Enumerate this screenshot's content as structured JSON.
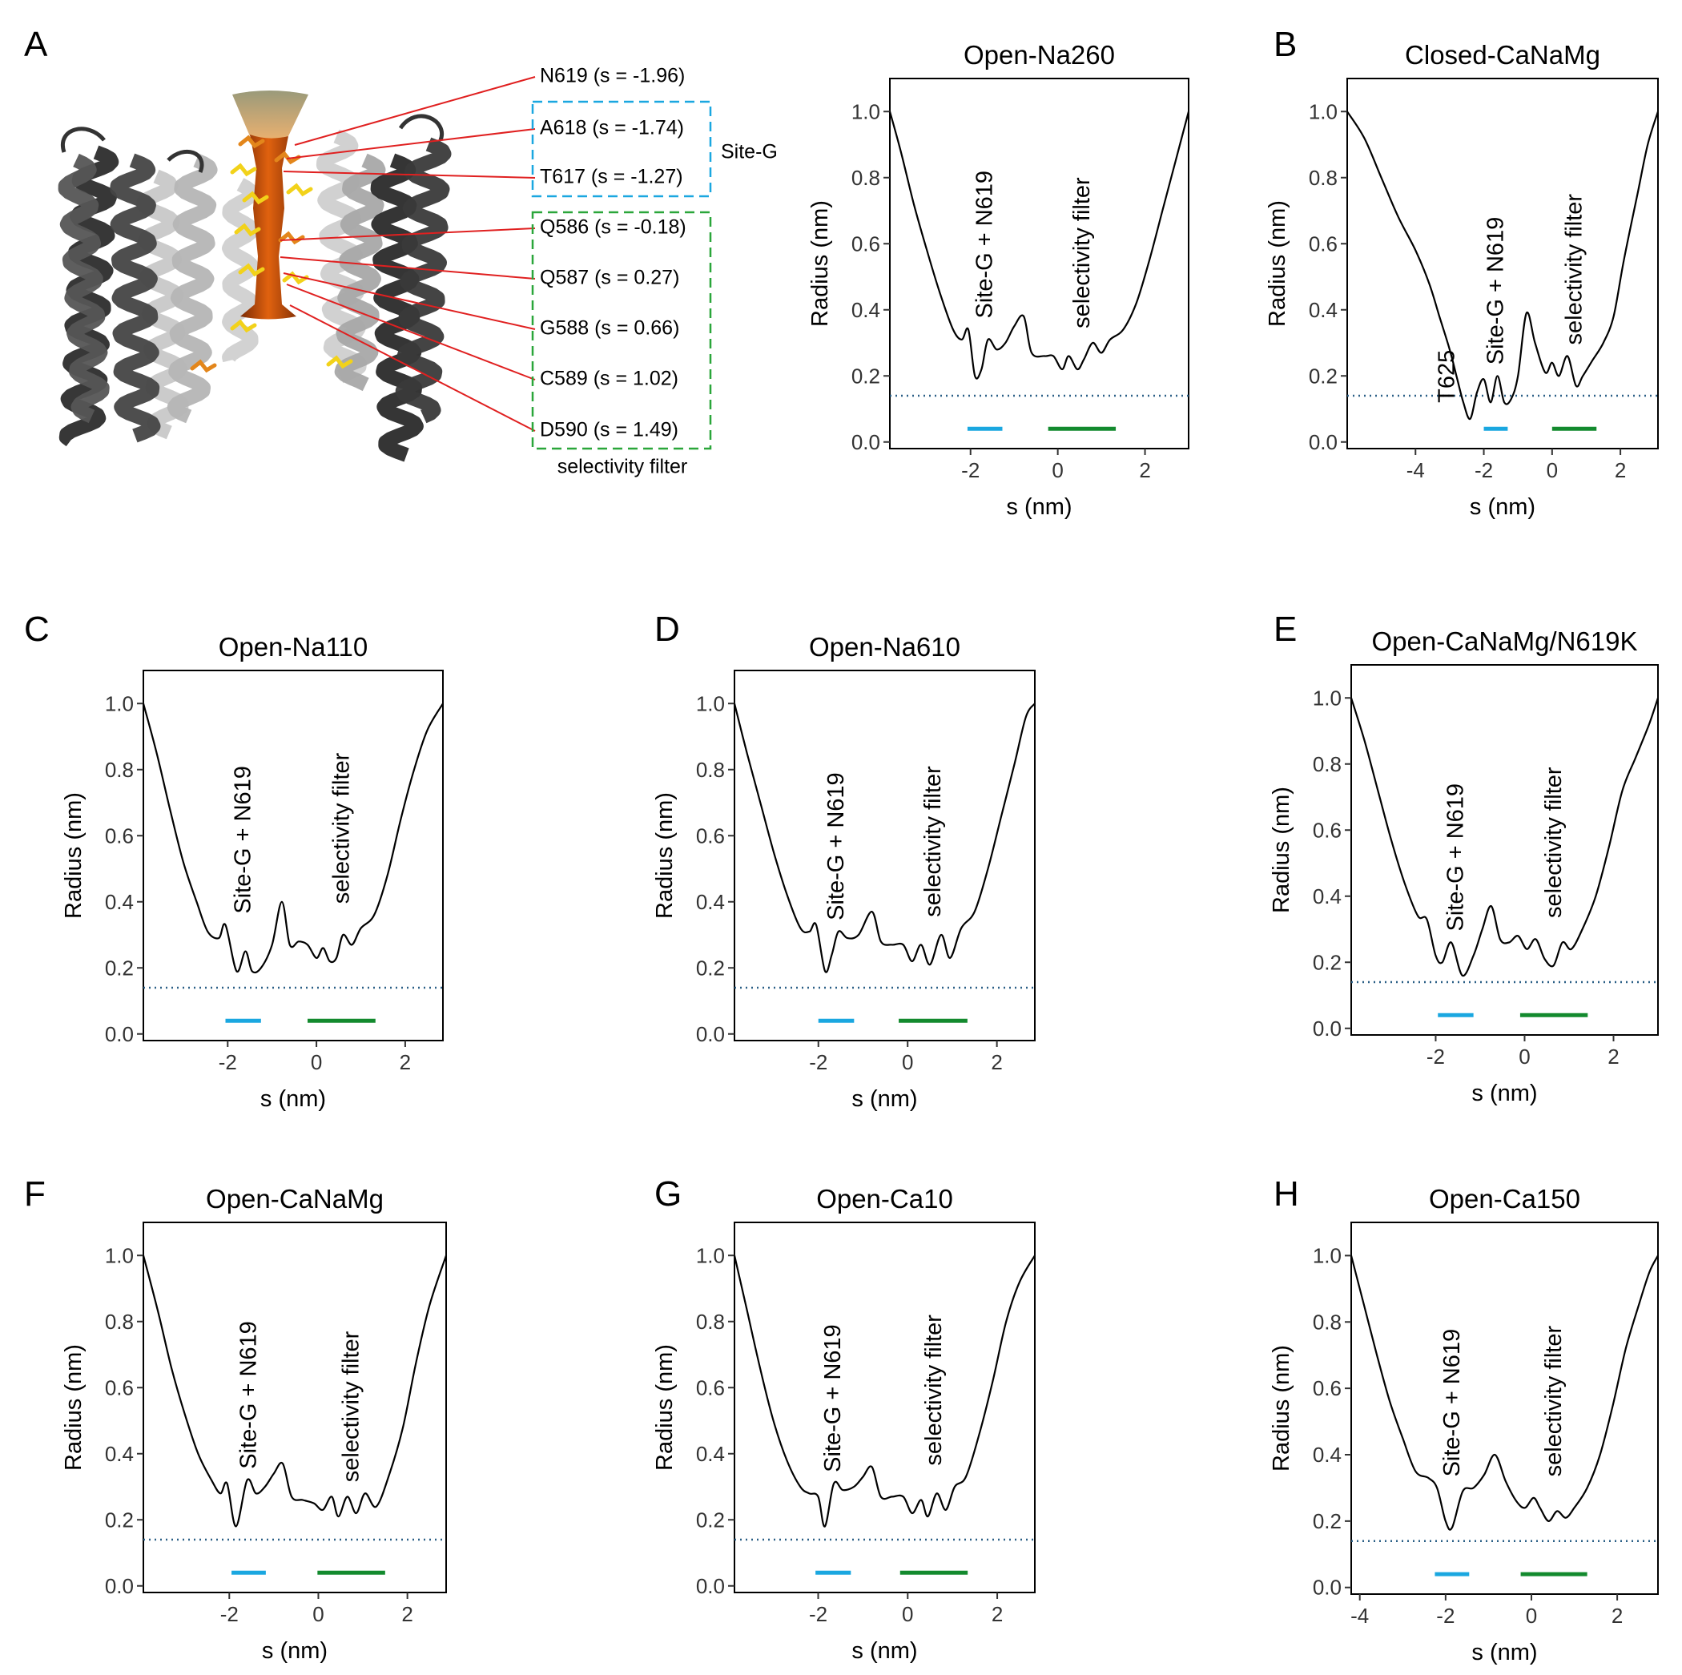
{
  "panels": [
    "A",
    "B",
    "C",
    "D",
    "E",
    "F",
    "G",
    "H"
  ],
  "structure": {
    "residues": [
      "N619 (s = -1.96)",
      "A618 (s = -1.74)",
      "T617 (s = -1.27)",
      "Q586 (s = -0.18)",
      "Q587 (s = 0.27)",
      "G588 (s = 0.66)",
      "C589 (s = 1.02)",
      "D590 (s = 1.49)"
    ],
    "site_g": "Site-G",
    "selectivity_filter": "selectivity filter"
  },
  "chart_data": [
    {
      "type": "line",
      "title": "Open-Na260",
      "x_label": "s (nm)",
      "y_label": "Radius (nm)",
      "color": "#000000",
      "xlim": [
        -3.85,
        3.0
      ],
      "xticks": [
        -2,
        0,
        2
      ],
      "ylim": [
        -0.02,
        1.1
      ],
      "yticks": [
        {
          "value": 0,
          "label": "0.0"
        },
        0.2,
        0.4,
        0.6,
        0.8,
        {
          "value": 1,
          "label": "1.0"
        }
      ],
      "x": [
        -3.85,
        -3.6,
        -3.3,
        -3.0,
        -2.7,
        -2.4,
        -2.2,
        -2.05,
        -1.9,
        -1.75,
        -1.6,
        -1.4,
        -1.2,
        -1.0,
        -0.78,
        -0.6,
        -0.3,
        -0.1,
        0.1,
        0.25,
        0.45,
        0.6,
        0.8,
        1.0,
        1.2,
        1.5,
        1.8,
        2.1,
        2.4,
        2.7,
        3.0
      ],
      "values": [
        1.0,
        0.88,
        0.72,
        0.58,
        0.45,
        0.34,
        0.31,
        0.34,
        0.2,
        0.22,
        0.31,
        0.28,
        0.3,
        0.35,
        0.38,
        0.27,
        0.26,
        0.26,
        0.22,
        0.26,
        0.22,
        0.25,
        0.3,
        0.27,
        0.31,
        0.34,
        0.42,
        0.55,
        0.7,
        0.85,
        1.0
      ],
      "reference_y": 0.14,
      "reference_color": "#2a5f86",
      "ranges": [
        {
          "name": "Site-G + N619",
          "color": "#1aa7e0",
          "x": [
            -2.07,
            -1.27
          ],
          "y": 0.04
        },
        {
          "name": "selectivity filter",
          "color": "#138a2e",
          "x": [
            -0.22,
            1.33
          ],
          "y": 0.04
        }
      ]
    },
    {
      "type": "line",
      "title": "Closed-CaNaMg",
      "x_label": "s (nm)",
      "y_label": "Radius (nm)",
      "color": "#000000",
      "xlim": [
        -6.0,
        3.1
      ],
      "xticks": [
        -4,
        -2,
        0,
        2
      ],
      "ylim": [
        -0.02,
        1.1
      ],
      "yticks": [
        {
          "value": 0,
          "label": "0.0"
        },
        0.2,
        0.4,
        0.6,
        0.8,
        {
          "value": 1,
          "label": "1.0"
        }
      ],
      "x": [
        -6.0,
        -5.5,
        -5.0,
        -4.5,
        -4.0,
        -3.6,
        -3.3,
        -3.0,
        -2.8,
        -2.6,
        -2.4,
        -2.2,
        -2.0,
        -1.8,
        -1.6,
        -1.4,
        -1.2,
        -1.0,
        -0.75,
        -0.5,
        -0.2,
        0,
        0.2,
        0.45,
        0.7,
        0.9,
        1.2,
        1.5,
        1.8,
        2.1,
        2.5,
        2.8,
        3.1
      ],
      "values": [
        1.0,
        0.92,
        0.8,
        0.68,
        0.58,
        0.48,
        0.38,
        0.28,
        0.2,
        0.12,
        0.07,
        0.15,
        0.19,
        0.12,
        0.2,
        0.12,
        0.13,
        0.2,
        0.39,
        0.3,
        0.21,
        0.24,
        0.2,
        0.26,
        0.17,
        0.2,
        0.25,
        0.3,
        0.38,
        0.55,
        0.75,
        0.9,
        1.0
      ],
      "reference_y": 0.14,
      "reference_color": "#2a5f86",
      "ranges": [
        {
          "name": "Site-G + N619",
          "color": "#1aa7e0",
          "x": [
            -2.0,
            -1.3
          ],
          "y": 0.04
        },
        {
          "name": "selectivity filter",
          "color": "#138a2e",
          "x": [
            0.0,
            1.3
          ],
          "y": 0.04
        }
      ],
      "annotations": [
        "T625"
      ]
    },
    {
      "type": "line",
      "title": "Open-Na110",
      "x_label": "s (nm)",
      "y_label": "Radius (nm)",
      "color": "#000000",
      "xlim": [
        -3.9,
        2.85
      ],
      "xticks": [
        -2,
        0,
        2
      ],
      "ylim": [
        -0.02,
        1.1
      ],
      "yticks": [
        {
          "value": 0,
          "label": "0.0"
        },
        0.2,
        0.4,
        0.6,
        0.8,
        {
          "value": 1,
          "label": "1.0"
        }
      ],
      "x": [
        -3.9,
        -3.6,
        -3.3,
        -3.0,
        -2.7,
        -2.45,
        -2.2,
        -2.05,
        -1.8,
        -1.6,
        -1.45,
        -1.25,
        -1.0,
        -0.78,
        -0.6,
        -0.4,
        -0.2,
        0,
        0.15,
        0.3,
        0.45,
        0.6,
        0.8,
        1.0,
        1.3,
        1.6,
        1.9,
        2.2,
        2.5,
        2.85
      ],
      "values": [
        1.0,
        0.85,
        0.68,
        0.52,
        0.4,
        0.31,
        0.29,
        0.33,
        0.19,
        0.25,
        0.19,
        0.2,
        0.27,
        0.4,
        0.27,
        0.28,
        0.27,
        0.23,
        0.26,
        0.22,
        0.23,
        0.3,
        0.27,
        0.32,
        0.36,
        0.48,
        0.65,
        0.8,
        0.92,
        1.0
      ],
      "reference_y": 0.14,
      "reference_color": "#2a5f86",
      "ranges": [
        {
          "name": "Site-G + N619",
          "color": "#1aa7e0",
          "x": [
            -2.05,
            -1.25
          ],
          "y": 0.04
        },
        {
          "name": "selectivity filter",
          "color": "#138a2e",
          "x": [
            -0.2,
            1.33
          ],
          "y": 0.04
        }
      ]
    },
    {
      "type": "line",
      "title": "Open-Na610",
      "x_label": "s (nm)",
      "y_label": "Radius (nm)",
      "color": "#000000",
      "xlim": [
        -3.88,
        2.85
      ],
      "xticks": [
        -2,
        0,
        2
      ],
      "ylim": [
        -0.02,
        1.1
      ],
      "yticks": [
        {
          "value": 0,
          "label": "0.0"
        },
        0.2,
        0.4,
        0.6,
        0.8,
        {
          "value": 1,
          "label": "1.0"
        }
      ],
      "x": [
        -3.88,
        -3.6,
        -3.3,
        -3.0,
        -2.7,
        -2.4,
        -2.2,
        -2.05,
        -1.85,
        -1.7,
        -1.55,
        -1.35,
        -1.1,
        -0.8,
        -0.6,
        -0.35,
        -0.1,
        0.1,
        0.3,
        0.5,
        0.75,
        0.95,
        1.2,
        1.5,
        1.8,
        2.1,
        2.4,
        2.65,
        2.85
      ],
      "values": [
        1.0,
        0.85,
        0.7,
        0.55,
        0.42,
        0.32,
        0.31,
        0.33,
        0.19,
        0.24,
        0.31,
        0.29,
        0.3,
        0.37,
        0.28,
        0.27,
        0.27,
        0.22,
        0.27,
        0.21,
        0.3,
        0.23,
        0.32,
        0.37,
        0.5,
        0.66,
        0.82,
        0.96,
        1.0
      ],
      "reference_y": 0.14,
      "reference_color": "#2a5f86",
      "ranges": [
        {
          "name": "Site-G + N619",
          "color": "#1aa7e0",
          "x": [
            -2.0,
            -1.2
          ],
          "y": 0.04
        },
        {
          "name": "selectivity filter",
          "color": "#138a2e",
          "x": [
            -0.2,
            1.34
          ],
          "y": 0.04
        }
      ]
    },
    {
      "type": "line",
      "title": "Open-CaNaMg/N619K",
      "x_label": "s (nm)",
      "y_label": "Radius (nm)",
      "color": "#000000",
      "xlim": [
        -3.9,
        3.0
      ],
      "xticks": [
        -2,
        0,
        2
      ],
      "ylim": [
        -0.02,
        1.1
      ],
      "yticks": [
        {
          "value": 0,
          "label": "0.0"
        },
        0.2,
        0.4,
        0.6,
        0.8,
        {
          "value": 1,
          "label": "1.0"
        }
      ],
      "x": [
        -3.9,
        -3.6,
        -3.3,
        -3.0,
        -2.7,
        -2.4,
        -2.2,
        -2.0,
        -1.85,
        -1.65,
        -1.4,
        -1.15,
        -0.95,
        -0.75,
        -0.55,
        -0.35,
        -0.15,
        0.05,
        0.25,
        0.45,
        0.65,
        0.85,
        1.05,
        1.3,
        1.6,
        1.9,
        2.2,
        2.5,
        2.8,
        3.0
      ],
      "values": [
        1.0,
        0.87,
        0.72,
        0.57,
        0.44,
        0.34,
        0.33,
        0.22,
        0.2,
        0.26,
        0.16,
        0.22,
        0.3,
        0.37,
        0.27,
        0.26,
        0.28,
        0.24,
        0.27,
        0.21,
        0.19,
        0.26,
        0.24,
        0.3,
        0.4,
        0.55,
        0.72,
        0.82,
        0.92,
        1.0
      ],
      "reference_y": 0.14,
      "reference_color": "#2a5f86",
      "ranges": [
        {
          "name": "Site-G + N619",
          "color": "#1aa7e0",
          "x": [
            -1.95,
            -1.15
          ],
          "y": 0.04
        },
        {
          "name": "selectivity filter",
          "color": "#138a2e",
          "x": [
            -0.1,
            1.42
          ],
          "y": 0.04
        }
      ]
    },
    {
      "type": "line",
      "title": "Open-CaNaMg",
      "x_label": "s (nm)",
      "y_label": "Radius (nm)",
      "color": "#000000",
      "xlim": [
        -3.93,
        2.87
      ],
      "xticks": [
        -2,
        0,
        2
      ],
      "ylim": [
        -0.02,
        1.1
      ],
      "yticks": [
        {
          "value": 0,
          "label": "0.0"
        },
        0.2,
        0.4,
        0.6,
        0.8,
        {
          "value": 1,
          "label": "1.0"
        }
      ],
      "x": [
        -3.93,
        -3.6,
        -3.3,
        -3.0,
        -2.7,
        -2.4,
        -2.2,
        -2.05,
        -1.85,
        -1.6,
        -1.4,
        -1.2,
        -1.0,
        -0.8,
        -0.6,
        -0.35,
        -0.1,
        0.1,
        0.3,
        0.45,
        0.65,
        0.85,
        1.05,
        1.3,
        1.6,
        1.9,
        2.2,
        2.5,
        2.87
      ],
      "values": [
        1.0,
        0.83,
        0.66,
        0.52,
        0.4,
        0.32,
        0.28,
        0.31,
        0.18,
        0.32,
        0.28,
        0.3,
        0.34,
        0.37,
        0.27,
        0.26,
        0.25,
        0.23,
        0.27,
        0.21,
        0.27,
        0.22,
        0.28,
        0.24,
        0.34,
        0.48,
        0.68,
        0.85,
        1.0
      ],
      "reference_y": 0.14,
      "reference_color": "#2a5f86",
      "ranges": [
        {
          "name": "Site-G + N619",
          "color": "#1aa7e0",
          "x": [
            -1.95,
            -1.18
          ],
          "y": 0.04
        },
        {
          "name": "selectivity filter",
          "color": "#138a2e",
          "x": [
            -0.02,
            1.5
          ],
          "y": 0.04
        }
      ]
    },
    {
      "type": "line",
      "title": "Open-Ca10",
      "x_label": "s (nm)",
      "y_label": "Radius (nm)",
      "color": "#000000",
      "xlim": [
        -3.87,
        2.84
      ],
      "xticks": [
        -2,
        0,
        2
      ],
      "ylim": [
        -0.02,
        1.1
      ],
      "yticks": [
        {
          "value": 0,
          "label": "0.0"
        },
        0.2,
        0.4,
        0.6,
        0.8,
        {
          "value": 1,
          "label": "1.0"
        }
      ],
      "x": [
        -3.87,
        -3.6,
        -3.3,
        -3.0,
        -2.7,
        -2.4,
        -2.2,
        -2.0,
        -1.85,
        -1.65,
        -1.45,
        -1.2,
        -1.0,
        -0.8,
        -0.6,
        -0.35,
        -0.1,
        0.1,
        0.3,
        0.45,
        0.65,
        0.85,
        1.05,
        1.3,
        1.6,
        1.9,
        2.2,
        2.5,
        2.84
      ],
      "values": [
        1.0,
        0.84,
        0.66,
        0.5,
        0.38,
        0.3,
        0.28,
        0.27,
        0.18,
        0.31,
        0.29,
        0.3,
        0.33,
        0.36,
        0.27,
        0.27,
        0.27,
        0.22,
        0.26,
        0.21,
        0.28,
        0.23,
        0.3,
        0.33,
        0.46,
        0.62,
        0.8,
        0.92,
        1.0
      ],
      "reference_y": 0.14,
      "reference_color": "#2a5f86",
      "ranges": [
        {
          "name": "Site-G + N619",
          "color": "#1aa7e0",
          "x": [
            -2.06,
            -1.27
          ],
          "y": 0.04
        },
        {
          "name": "selectivity filter",
          "color": "#138a2e",
          "x": [
            -0.17,
            1.34
          ],
          "y": 0.04
        }
      ]
    },
    {
      "type": "line",
      "title": "Open-Ca150",
      "x_label": "s (nm)",
      "y_label": "Radius (nm)",
      "color": "#000000",
      "xlim": [
        -4.2,
        2.95
      ],
      "xticks": [
        -4,
        -2,
        0,
        2
      ],
      "ylim": [
        -0.02,
        1.1
      ],
      "yticks": [
        {
          "value": 0,
          "label": "0.0"
        },
        0.2,
        0.4,
        0.6,
        0.8,
        {
          "value": 1,
          "label": "1.0"
        }
      ],
      "x": [
        -4.2,
        -3.9,
        -3.6,
        -3.3,
        -3.0,
        -2.7,
        -2.4,
        -2.2,
        -2.0,
        -1.85,
        -1.6,
        -1.35,
        -1.1,
        -0.85,
        -0.6,
        -0.35,
        -0.15,
        0.05,
        0.2,
        0.4,
        0.6,
        0.8,
        1.0,
        1.3,
        1.6,
        1.9,
        2.2,
        2.5,
        2.75,
        2.95
      ],
      "values": [
        1.0,
        0.85,
        0.7,
        0.56,
        0.45,
        0.35,
        0.33,
        0.3,
        0.2,
        0.18,
        0.29,
        0.3,
        0.34,
        0.4,
        0.32,
        0.26,
        0.24,
        0.27,
        0.24,
        0.2,
        0.23,
        0.21,
        0.24,
        0.3,
        0.4,
        0.55,
        0.72,
        0.85,
        0.95,
        1.0
      ],
      "reference_y": 0.14,
      "reference_color": "#2a5f86",
      "ranges": [
        {
          "name": "Site-G + N619",
          "color": "#1aa7e0",
          "x": [
            -2.25,
            -1.45
          ],
          "y": 0.04
        },
        {
          "name": "selectivity filter",
          "color": "#138a2e",
          "x": [
            -0.25,
            1.3
          ],
          "y": 0.04
        }
      ]
    }
  ]
}
